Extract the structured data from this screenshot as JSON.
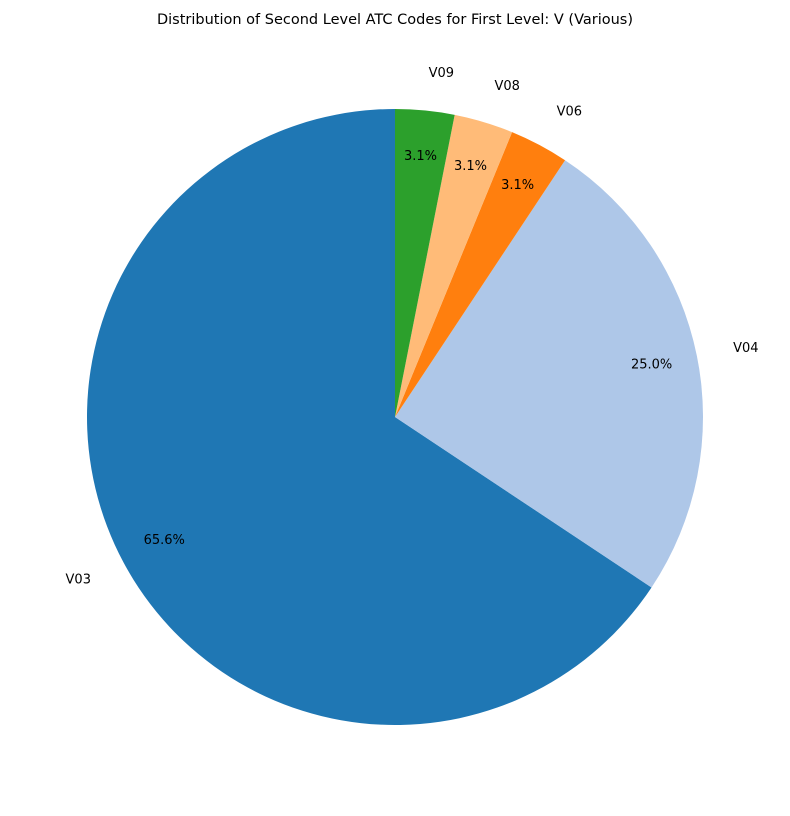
{
  "chart_data": {
    "type": "pie",
    "title": "Distribution of Second Level ATC Codes for First Level: V (Various)",
    "start_angle_deg": 90,
    "direction": "counterclockwise",
    "slices": [
      {
        "label": "V03",
        "value": 65.6,
        "pct_label": "65.6%",
        "color": "#1f77b4"
      },
      {
        "label": "V04",
        "value": 25.0,
        "pct_label": "25.0%",
        "color": "#aec7e8"
      },
      {
        "label": "V06",
        "value": 3.1,
        "pct_label": "3.1%",
        "color": "#ff7f0e"
      },
      {
        "label": "V08",
        "value": 3.1,
        "pct_label": "3.1%",
        "color": "#ffbb78"
      },
      {
        "label": "V09",
        "value": 3.1,
        "pct_label": "3.1%",
        "color": "#2ca02c"
      }
    ]
  }
}
